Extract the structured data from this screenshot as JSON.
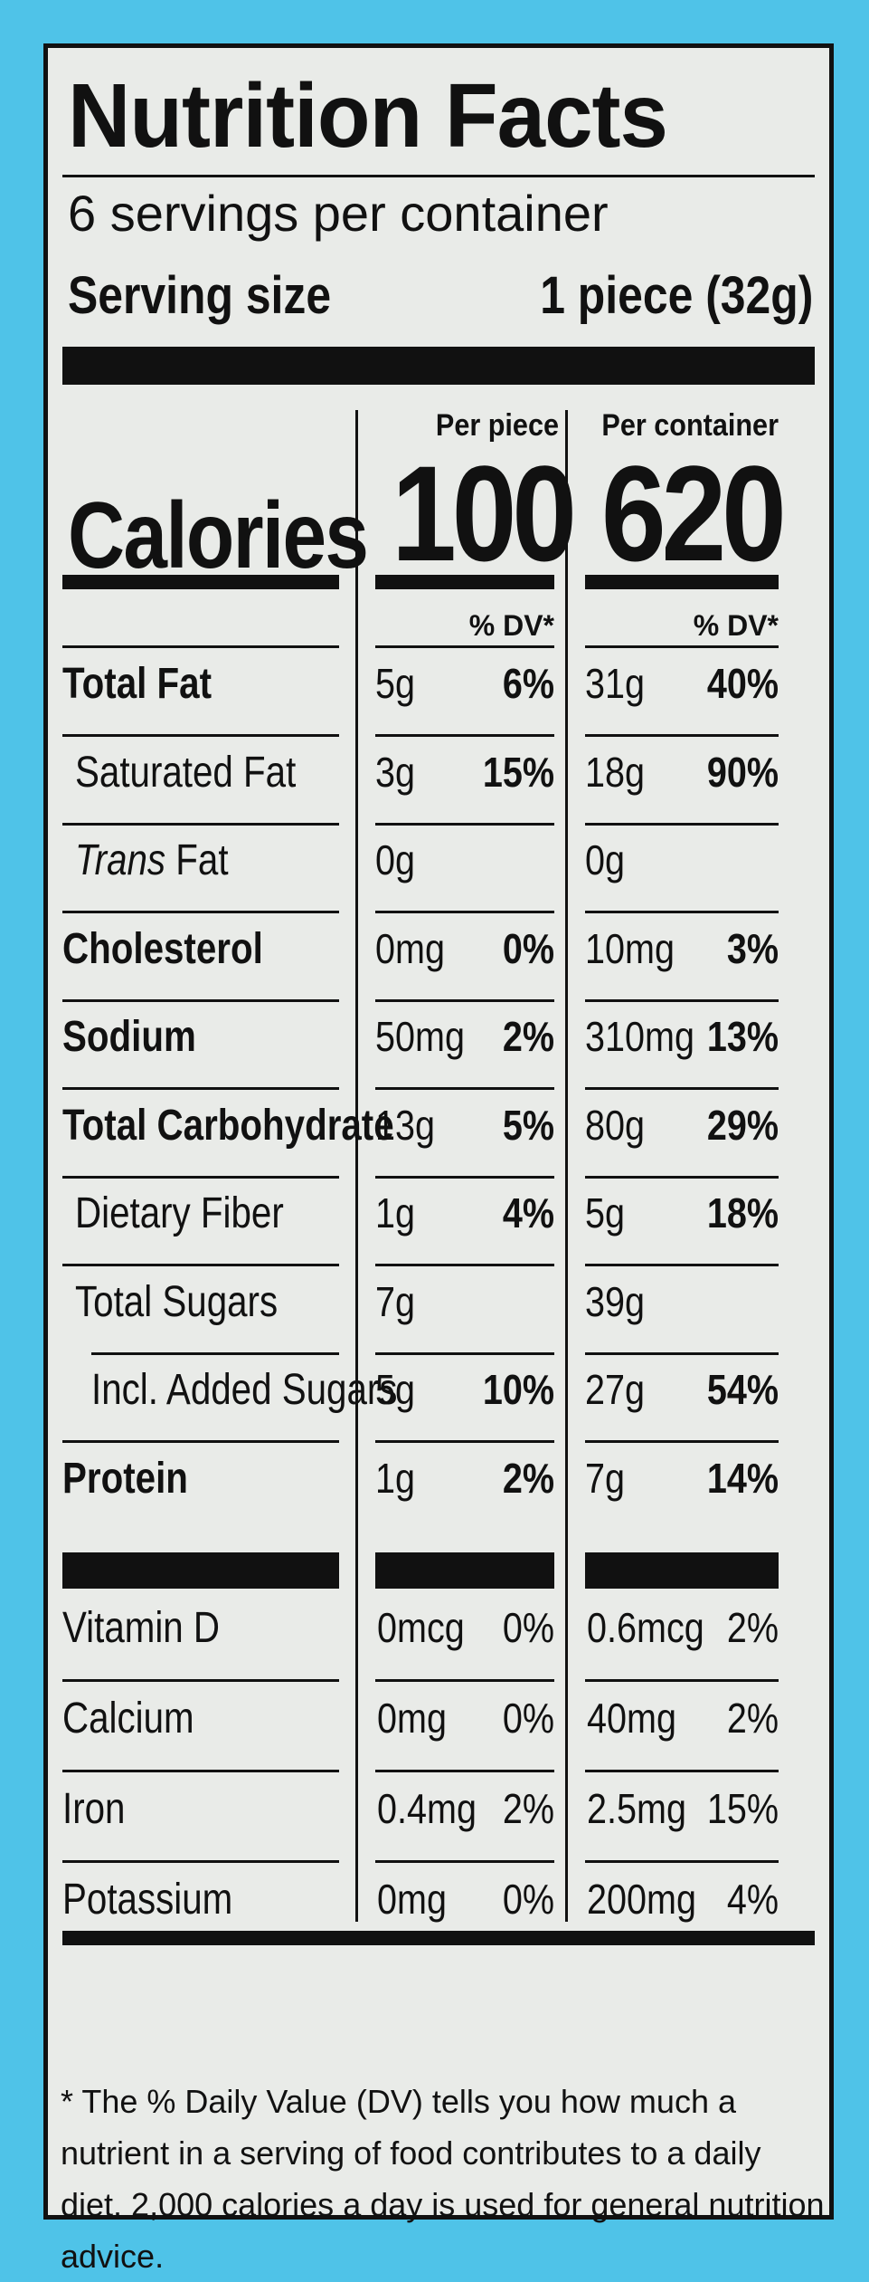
{
  "label": {
    "title": "Nutrition Facts",
    "servings_per_container": "6 servings per container",
    "serving_size_label": "Serving size",
    "serving_size_value": "1 piece (32g)",
    "calories_label": "Calories",
    "columns": [
      {
        "header": "Per piece",
        "calories": "100",
        "dv_header": "% DV*"
      },
      {
        "header": "Per container",
        "calories": "620",
        "dv_header": "% DV*"
      }
    ],
    "nutrients": [
      {
        "name": "Total Fat",
        "style": "bold",
        "a1": "5g",
        "p1": "6%",
        "a2": "31g",
        "p2": "40%"
      },
      {
        "name": "Saturated Fat",
        "style": "indent",
        "a1": "3g",
        "p1": "15%",
        "a2": "18g",
        "p2": "90%"
      },
      {
        "name_italic": "Trans",
        "name": " Fat",
        "style": "indent",
        "a1": "0g",
        "p1": "",
        "a2": "0g",
        "p2": ""
      },
      {
        "name": "Cholesterol",
        "style": "bold",
        "a1": "0mg",
        "p1": "0%",
        "a2": "10mg",
        "p2": "3%"
      },
      {
        "name": "Sodium",
        "style": "bold",
        "a1": "50mg",
        "p1": "2%",
        "a2": "310mg",
        "p2": "13%"
      },
      {
        "name": "Total Carbohydrate",
        "style": "bold",
        "a1": "13g",
        "p1": "5%",
        "a2": "80g",
        "p2": "29%"
      },
      {
        "name": "Dietary Fiber",
        "style": "indent",
        "a1": "1g",
        "p1": "4%",
        "a2": "5g",
        "p2": "18%"
      },
      {
        "name": "Total Sugars",
        "style": "indent",
        "a1": "7g",
        "p1": "",
        "a2": "39g",
        "p2": ""
      },
      {
        "name": "Incl. Added Sugars",
        "style": "indent2",
        "a1": "5g",
        "p1": "10%",
        "a2": "27g",
        "p2": "54%"
      },
      {
        "name": "Protein",
        "style": "bold",
        "a1": "1g",
        "p1": "2%",
        "a2": "7g",
        "p2": "14%"
      }
    ],
    "vitamins": [
      {
        "name": "Vitamin D",
        "a1": "0mcg",
        "p1": "0%",
        "a2": "0.6mcg",
        "p2": "2%"
      },
      {
        "name": "Calcium",
        "a1": "0mg",
        "p1": "0%",
        "a2": "40mg",
        "p2": "2%"
      },
      {
        "name": "Iron",
        "a1": "0.4mg",
        "p1": "2%",
        "a2": "2.5mg",
        "p2": "15%"
      },
      {
        "name": "Potassium",
        "a1": "0mg",
        "p1": "0%",
        "a2": "200mg",
        "p2": "4%"
      }
    ],
    "footnote": "* The % Daily Value (DV) tells you how much a nutrient in a serving of food contributes to a daily diet. 2,000 calories a day is used for general nutrition advice."
  }
}
